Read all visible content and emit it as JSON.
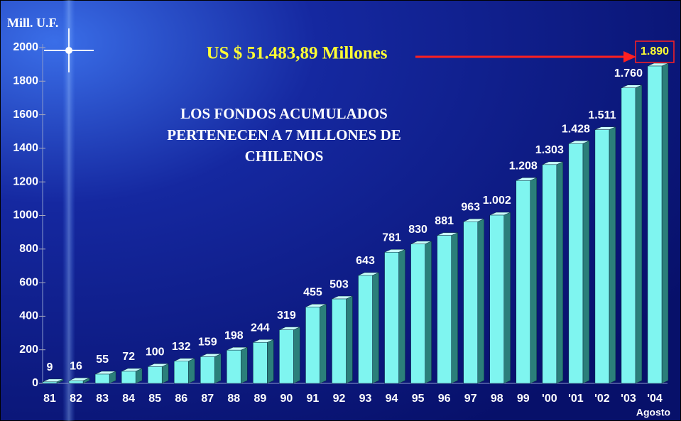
{
  "chart_data": {
    "type": "bar",
    "y_label": "Mill. U.F.",
    "annotation": "US $ 51.483,89 Millones",
    "notes": [
      "LOS FONDOS ACUMULADOS",
      "PERTENECEN A 7 MILLONES DE",
      "CHILENOS"
    ],
    "x_note": "Agosto",
    "categories": [
      "81",
      "82",
      "83",
      "84",
      "85",
      "86",
      "87",
      "88",
      "89",
      "90",
      "91",
      "92",
      "93",
      "94",
      "95",
      "96",
      "97",
      "98",
      "99",
      "'00",
      "'01",
      "'02",
      "'03",
      "'04"
    ],
    "values": [
      9,
      16,
      55,
      72,
      100,
      132,
      159,
      198,
      244,
      319,
      455,
      503,
      643,
      781,
      830,
      881,
      963,
      1002,
      1208,
      1303,
      1428,
      1511,
      1760,
      1890
    ],
    "value_labels": [
      "9",
      "16",
      "55",
      "72",
      "100",
      "132",
      "159",
      "198",
      "244",
      "319",
      "455",
      "503",
      "643",
      "781",
      "830",
      "881",
      "963",
      "1.002",
      "1.208",
      "1.303",
      "1.428",
      "1.511",
      "1.760",
      "1.890"
    ],
    "color": "#7ff5f0",
    "side_color": "#2b7f7a",
    "ylim": [
      0,
      2000
    ],
    "yticks": [
      0,
      200,
      400,
      600,
      800,
      1000,
      1200,
      1400,
      1600,
      1800,
      2000
    ]
  }
}
